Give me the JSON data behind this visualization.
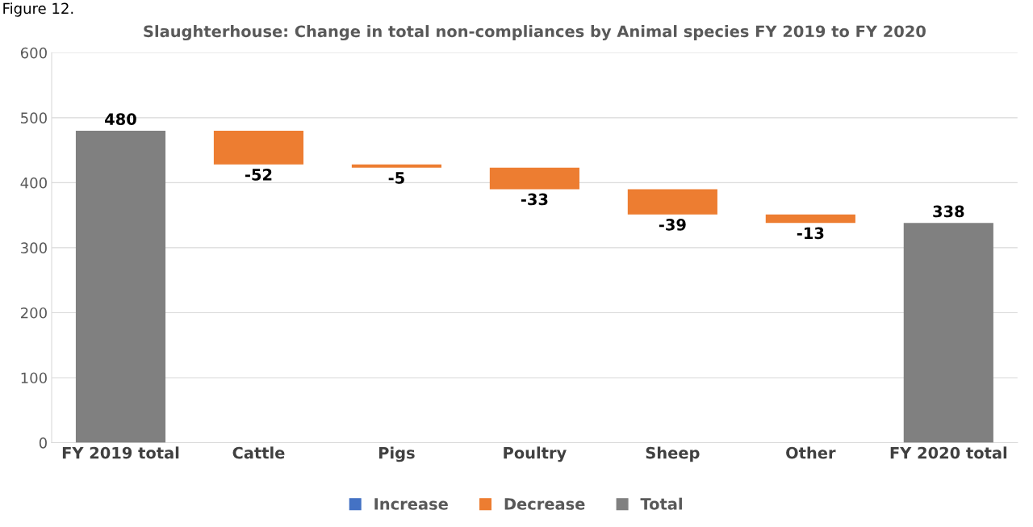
{
  "chart_data": {
    "type": "bar",
    "title": "Slaughterhouse: Change in total non-compliances by Animal species FY 2019 to FY 2020",
    "annotations": [
      "Figure 12."
    ],
    "categories": [
      "FY 2019 total",
      "Cattle",
      "Pigs",
      "Poultry",
      "Sheep",
      "Other",
      "FY 2020 total"
    ],
    "series": [
      {
        "name": "Increase",
        "color": "#4472c4",
        "values": [
          null,
          null,
          null,
          null,
          null,
          null,
          null
        ]
      },
      {
        "name": "Decrease",
        "color": "#ed7d31",
        "base": [
          null,
          480,
          428,
          423,
          390,
          351,
          null
        ],
        "values": [
          null,
          -52,
          -5,
          -33,
          -39,
          -13,
          null
        ]
      },
      {
        "name": "Total",
        "color": "#808080",
        "base": [
          0,
          null,
          null,
          null,
          null,
          null,
          0
        ],
        "values": [
          480,
          null,
          null,
          null,
          null,
          null,
          338
        ]
      }
    ],
    "data_labels": true,
    "ylim": [
      0,
      600
    ],
    "yticks": [
      0,
      100,
      200,
      300,
      400,
      500,
      600
    ],
    "grid": "y",
    "legend": "bottom"
  }
}
